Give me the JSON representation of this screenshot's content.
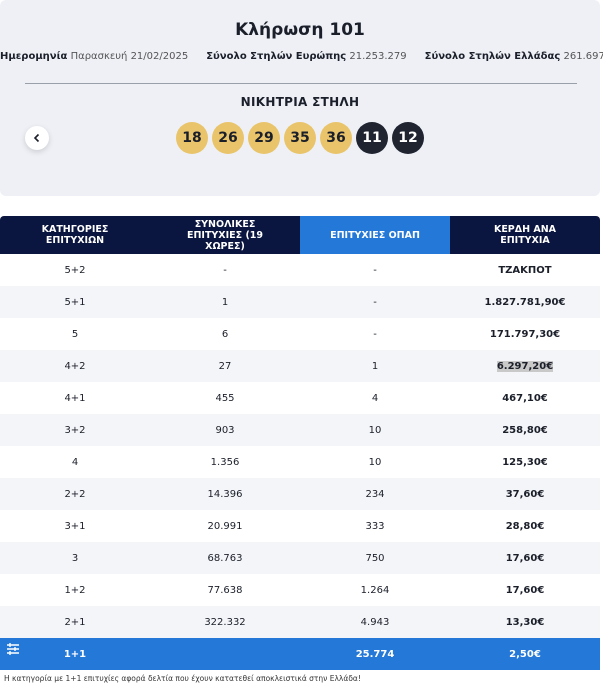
{
  "header": {
    "title": "Κλήρωση 101",
    "info": [
      {
        "label": "Ημερομηνία",
        "value": "Παρασκευή 21/02/2025"
      },
      {
        "label": "Σύνολο Στηλών Ευρώπης",
        "value": "21.253.279"
      },
      {
        "label": "Σύνολο Στηλών Ελλάδας",
        "value": "261.697"
      }
    ],
    "winning_label": "ΝΙΚΗΤΡΙΑ ΣΤΗΛΗ",
    "main_numbers": [
      18,
      26,
      29,
      35,
      36
    ],
    "euro_numbers": [
      11,
      12
    ]
  },
  "table": {
    "headers": [
      "ΚΑΤΗΓΟΡΙΕΣ ΕΠΙΤΥΧΙΩΝ",
      "ΣΥΝΟΛΙΚΕΣ ΕΠΙΤΥΧΙΕΣ (19 ΧΩΡΕΣ)",
      "ΕΠΙΤΥΧΙΕΣ ΟΠΑΠ",
      "ΚΕΡΔΗ ΑΝΑ ΕΠΙΤΥΧΙΑ"
    ],
    "rows": [
      [
        "5+2",
        "-",
        "-",
        "ΤΖΑΚΠΟΤ"
      ],
      [
        "5+1",
        "1",
        "-",
        "1.827.781,90€"
      ],
      [
        "5",
        "6",
        "-",
        "171.797,30€"
      ],
      [
        "4+2",
        "27",
        "1",
        "6.297,20€"
      ],
      [
        "4+1",
        "455",
        "4",
        "467,10€"
      ],
      [
        "3+2",
        "903",
        "10",
        "258,80€"
      ],
      [
        "4",
        "1.356",
        "10",
        "125,30€"
      ],
      [
        "2+2",
        "14.396",
        "234",
        "37,60€"
      ],
      [
        "3+1",
        "20.991",
        "333",
        "28,80€"
      ],
      [
        "3",
        "68.763",
        "750",
        "17,60€"
      ],
      [
        "1+2",
        "77.638",
        "1.264",
        "17,60€"
      ],
      [
        "2+1",
        "322.332",
        "4.943",
        "13,30€"
      ],
      [
        "1+1",
        "",
        "25.774",
        "2,50€"
      ]
    ]
  },
  "footnote": "Η κατηγορία με 1+1 επιτυχίες αφορά δελτία που έχουν κατατεθεί αποκλειστικά στην Ελλάδα!"
}
